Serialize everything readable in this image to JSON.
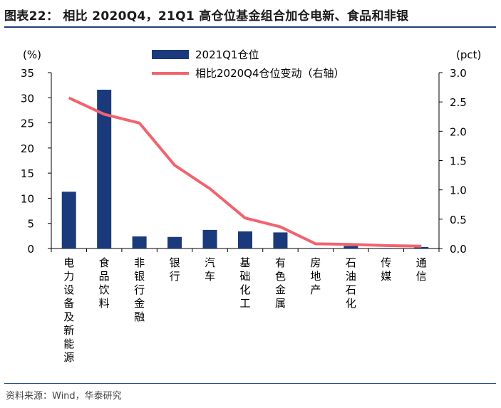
{
  "header": {
    "title": "图表22： 相比 2020Q4，21Q1 高仓位基金组合加仓电新、食品和非银"
  },
  "footer": {
    "source": "资料来源：Wind，华泰研究"
  },
  "chart_data": {
    "type": "bar",
    "categories": [
      "电力设备及新能源",
      "食品饮料",
      "非银行金融",
      "银行",
      "汽车",
      "基础化工",
      "有色金属",
      "房地产",
      "石油石化",
      "传媒",
      "通信"
    ],
    "left_axis": {
      "unit": "(%)",
      "ylim": [
        0,
        35
      ],
      "ticks": [
        "0",
        "5",
        "10",
        "15",
        "20",
        "25",
        "30",
        "35"
      ]
    },
    "right_axis": {
      "unit": "(pct)",
      "ylim": [
        0,
        3.0
      ],
      "ticks": [
        "0.0",
        "0.5",
        "1.0",
        "1.5",
        "2.0",
        "2.5",
        "3.0"
      ]
    },
    "series": [
      {
        "name": "2021Q1仓位",
        "type": "bar",
        "axis": "left",
        "color": "#1a3a7c",
        "values": [
          11.3,
          31.6,
          2.4,
          2.3,
          3.7,
          3.4,
          3.2,
          0.1,
          0.5,
          0.1,
          0.3
        ]
      },
      {
        "name": "相比2020Q4仓位变动（右轴）",
        "type": "line",
        "axis": "right",
        "color": "#f0646e",
        "values": [
          2.57,
          2.29,
          2.14,
          1.42,
          1.02,
          0.52,
          0.37,
          0.08,
          0.07,
          0.05,
          0.04
        ]
      }
    ],
    "legend": "top-center",
    "grid": false
  }
}
